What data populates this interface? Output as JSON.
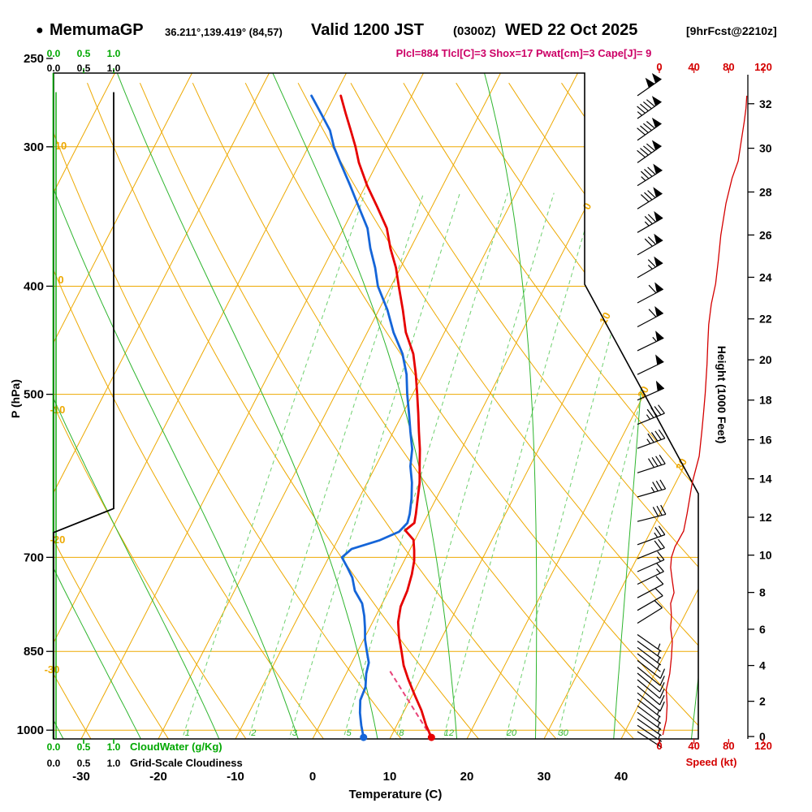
{
  "header": {
    "bullet": "●",
    "station": "MemumaGP",
    "coords": "36.211°,139.419° (84,57)",
    "valid_main": "Valid 1200 JST",
    "valid_z": "(0300Z)",
    "valid_date": "WED 22 Oct 2025",
    "forecast": "[9hrFcst@2210z]",
    "params": "Plcl=884 Tlcl[C]=3 Shox=17 Pwat[cm]=3 Cape[J]= 9"
  },
  "axes": {
    "pressure": {
      "title": "P (hPa)",
      "ticks": [
        250,
        300,
        400,
        500,
        700,
        850,
        1000
      ]
    },
    "temperature": {
      "title": "Temperature (C)",
      "ticks": [
        -30,
        -20,
        -10,
        0,
        10,
        20,
        30,
        40
      ]
    },
    "height": {
      "title": "Height (1000 Feet)",
      "ticks": [
        0,
        2,
        4,
        6,
        8,
        10,
        12,
        14,
        16,
        18,
        20,
        22,
        24,
        26,
        28,
        30,
        32
      ]
    },
    "speed": {
      "title": "Speed (kt)",
      "ticks": [
        0,
        40,
        80,
        120
      ]
    },
    "cloudwater": {
      "title": "CloudWater (g/Kg)",
      "ticks": [
        "0.0",
        "0.5",
        "1.0"
      ]
    },
    "cloudiness": {
      "title": "Grid-Scale Cloudiness",
      "ticks": [
        "0.0",
        "0.5",
        "1.0"
      ]
    }
  },
  "colors": {
    "grid_orange": "#eda902",
    "moist_green": "#2eb52e",
    "mixing_green": "#6fd06f",
    "axis_green": "#00a800",
    "temp_red": "#e60000",
    "dew_blue": "#1565d8",
    "speed_red": "#d40000",
    "params_magenta": "#cc0066",
    "parcel_magenta": "#e8447a",
    "frame_black": "#000000"
  },
  "chart_data": {
    "type": "line",
    "subtype": "skew-t-log-p-sounding",
    "title": "MemumaGP 36.211°,139.419° (84,57)",
    "pressure_range_hpa": [
      250,
      1050
    ],
    "temp_axis_range_c": [
      -40,
      45
    ],
    "height_axis_range_kft": [
      0,
      32
    ],
    "speed_axis_range_kt": [
      0,
      120
    ],
    "isotherm_step_c": 10,
    "isotherm_boundary_labels": [
      0,
      10,
      20,
      30
    ],
    "dry_adiabat_labels": [
      10,
      0,
      -10,
      -20,
      -30
    ],
    "mixing_ratio_lines_gkg": [
      1,
      2,
      3,
      5,
      8,
      12,
      20,
      30
    ],
    "moist_adiabat_starts_c": [
      -30,
      -20,
      -10,
      0,
      10,
      20,
      30,
      40,
      50
    ],
    "temperature_profile": [
      [
        1015,
        15.3
      ],
      [
        990,
        13.8
      ],
      [
        960,
        12.2
      ],
      [
        930,
        10.3
      ],
      [
        900,
        8.4
      ],
      [
        875,
        6.9
      ],
      [
        850,
        5.7
      ],
      [
        825,
        4.4
      ],
      [
        800,
        3.3
      ],
      [
        775,
        2.6
      ],
      [
        750,
        2.4
      ],
      [
        725,
        1.9
      ],
      [
        705,
        1.3
      ],
      [
        690,
        0.6
      ],
      [
        675,
        -0.2
      ],
      [
        662,
        -1.9
      ],
      [
        652,
        -1.2
      ],
      [
        640,
        -1.6
      ],
      [
        620,
        -2.4
      ],
      [
        600,
        -3.2
      ],
      [
        580,
        -4.3
      ],
      [
        560,
        -5.4
      ],
      [
        540,
        -6.7
      ],
      [
        520,
        -8.0
      ],
      [
        500,
        -9.4
      ],
      [
        480,
        -10.9
      ],
      [
        460,
        -12.6
      ],
      [
        440,
        -15.0
      ],
      [
        420,
        -16.9
      ],
      [
        400,
        -19.0
      ],
      [
        385,
        -20.6
      ],
      [
        370,
        -22.6
      ],
      [
        355,
        -24.4
      ],
      [
        340,
        -27.0
      ],
      [
        325,
        -29.8
      ],
      [
        310,
        -32.4
      ],
      [
        300,
        -33.9
      ],
      [
        290,
        -35.6
      ],
      [
        280,
        -37.4
      ],
      [
        270,
        -39.2
      ]
    ],
    "dewpoint_profile": [
      [
        1015,
        6.5
      ],
      [
        990,
        5.4
      ],
      [
        965,
        4.4
      ],
      [
        940,
        3.6
      ],
      [
        915,
        3.4
      ],
      [
        890,
        2.6
      ],
      [
        870,
        2.2
      ],
      [
        850,
        1.2
      ],
      [
        830,
        0.2
      ],
      [
        810,
        -0.6
      ],
      [
        790,
        -1.5
      ],
      [
        770,
        -2.6
      ],
      [
        750,
        -4.4
      ],
      [
        730,
        -5.6
      ],
      [
        715,
        -6.9
      ],
      [
        700,
        -8.3
      ],
      [
        688,
        -7.6
      ],
      [
        676,
        -4.6
      ],
      [
        664,
        -2.6
      ],
      [
        652,
        -2.1
      ],
      [
        640,
        -2.4
      ],
      [
        620,
        -3.2
      ],
      [
        600,
        -4.2
      ],
      [
        580,
        -5.5
      ],
      [
        560,
        -6.4
      ],
      [
        540,
        -7.8
      ],
      [
        520,
        -9.2
      ],
      [
        500,
        -10.7
      ],
      [
        480,
        -12.1
      ],
      [
        460,
        -14.0
      ],
      [
        440,
        -16.6
      ],
      [
        420,
        -18.9
      ],
      [
        400,
        -21.7
      ],
      [
        385,
        -23.3
      ],
      [
        370,
        -25.2
      ],
      [
        355,
        -26.9
      ],
      [
        340,
        -29.4
      ],
      [
        325,
        -32.0
      ],
      [
        310,
        -34.8
      ],
      [
        300,
        -36.7
      ],
      [
        290,
        -38.3
      ],
      [
        280,
        -40.6
      ],
      [
        270,
        -43.0
      ]
    ],
    "parcel_path": [
      [
        1015,
        15.3
      ],
      [
        884,
        5.4
      ]
    ],
    "wind_speed_profile_kt": [
      [
        1010,
        4
      ],
      [
        980,
        8
      ],
      [
        950,
        9
      ],
      [
        920,
        8
      ],
      [
        890,
        12
      ],
      [
        860,
        14
      ],
      [
        833,
        15
      ],
      [
        810,
        13
      ],
      [
        790,
        14
      ],
      [
        770,
        13
      ],
      [
        753,
        17
      ],
      [
        735,
        15
      ],
      [
        715,
        13
      ],
      [
        700,
        14
      ],
      [
        685,
        18
      ],
      [
        663,
        28
      ],
      [
        640,
        32
      ],
      [
        620,
        35
      ],
      [
        600,
        38
      ],
      [
        568,
        46
      ],
      [
        540,
        49
      ],
      [
        520,
        51
      ],
      [
        499,
        53
      ],
      [
        470,
        55
      ],
      [
        450,
        56
      ],
      [
        433,
        57
      ],
      [
        415,
        60
      ],
      [
        398,
        65
      ],
      [
        380,
        68
      ],
      [
        360,
        71
      ],
      [
        337,
        77
      ],
      [
        320,
        84
      ],
      [
        309,
        91
      ],
      [
        295,
        95
      ],
      [
        285,
        98
      ],
      [
        277,
        100
      ],
      [
        270,
        101
      ]
    ],
    "wind_barbs": [
      [
        270,
        235,
        100
      ],
      [
        283,
        235,
        95
      ],
      [
        296,
        235,
        90
      ],
      [
        310,
        235,
        90
      ],
      [
        325,
        238,
        85
      ],
      [
        341,
        238,
        80
      ],
      [
        358,
        240,
        75
      ],
      [
        375,
        240,
        70
      ],
      [
        393,
        240,
        65
      ],
      [
        414,
        242,
        60
      ],
      [
        435,
        242,
        60
      ],
      [
        457,
        244,
        55
      ],
      [
        480,
        244,
        50
      ],
      [
        506,
        246,
        50
      ],
      [
        532,
        248,
        45
      ],
      [
        559,
        250,
        45
      ],
      [
        588,
        252,
        40
      ],
      [
        618,
        254,
        35
      ],
      [
        650,
        256,
        30
      ],
      [
        682,
        250,
        25
      ],
      [
        702,
        248,
        20
      ],
      [
        721,
        246,
        15
      ],
      [
        740,
        244,
        15
      ],
      [
        761,
        242,
        12
      ],
      [
        781,
        240,
        10
      ],
      [
        802,
        238,
        10
      ],
      [
        821,
        305,
        5
      ],
      [
        832,
        306,
        5
      ],
      [
        843,
        307,
        7
      ],
      [
        854,
        308,
        7
      ],
      [
        866,
        308,
        8
      ],
      [
        878,
        309,
        8
      ],
      [
        889,
        310,
        10
      ],
      [
        901,
        310,
        10
      ],
      [
        913,
        310,
        9
      ],
      [
        926,
        309,
        8
      ],
      [
        938,
        308,
        7
      ],
      [
        951,
        307,
        7
      ],
      [
        964,
        306,
        6
      ],
      [
        977,
        305,
        5
      ],
      [
        990,
        304,
        5
      ],
      [
        1003,
        303,
        5
      ]
    ],
    "cloudiness_profile": [
      [
        1020,
        0
      ],
      [
        665,
        0
      ],
      [
        633,
        1
      ],
      [
        268,
        1
      ]
    ],
    "cloudwater_profile": [
      [
        1020,
        0
      ],
      [
        268,
        0
      ]
    ]
  }
}
